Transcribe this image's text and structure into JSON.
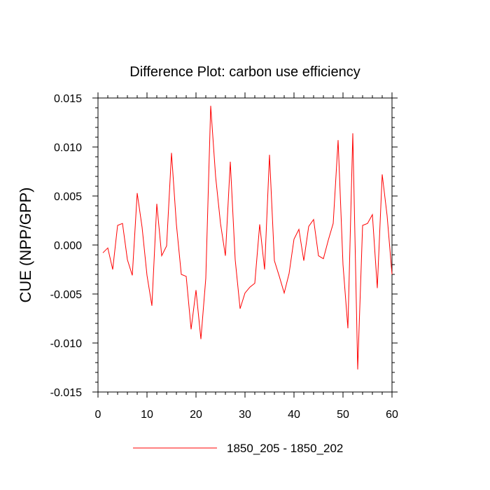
{
  "chart_data": {
    "type": "line",
    "title": "Difference Plot: carbon use efficiency",
    "xlabel": "",
    "ylabel": "CUE  (NPP/GPP)",
    "xlim": [
      0,
      60
    ],
    "ylim": [
      -0.015,
      0.015
    ],
    "x_ticks": [
      0,
      10,
      20,
      30,
      40,
      50,
      60
    ],
    "y_ticks": [
      -0.015,
      -0.01,
      -0.005,
      0.0,
      0.005,
      0.01,
      0.015
    ],
    "x_tick_labels": [
      "0",
      "10",
      "20",
      "30",
      "40",
      "50",
      "60"
    ],
    "y_tick_labels": [
      "-0.015",
      "-0.010",
      "-0.005",
      "0.000",
      "0.005",
      "0.010",
      "0.015"
    ],
    "grid": false,
    "legend_position": "bottom-center",
    "series": [
      {
        "name": "1850_205 - 1850_202",
        "color": "#ff0000",
        "x": [
          1,
          2,
          3,
          4,
          5,
          6,
          7,
          8,
          9,
          10,
          11,
          12,
          13,
          14,
          15,
          16,
          17,
          18,
          19,
          20,
          21,
          22,
          23,
          24,
          25,
          26,
          27,
          28,
          29,
          30,
          31,
          32,
          33,
          34,
          35,
          36,
          37,
          38,
          39,
          40,
          41,
          42,
          43,
          44,
          45,
          46,
          47,
          48,
          49,
          50,
          51,
          52,
          53,
          54,
          55,
          56,
          57,
          58,
          59,
          60
        ],
        "values": [
          -0.0008,
          -0.0003,
          -0.0025,
          0.002,
          0.0022,
          -0.0015,
          -0.0031,
          0.0053,
          0.0018,
          -0.0031,
          -0.0062,
          0.0042,
          -0.0011,
          -0.0001,
          0.0094,
          0.0021,
          -0.003,
          -0.0032,
          -0.0086,
          -0.0046,
          -0.0096,
          -0.0034,
          0.0142,
          0.007,
          0.0022,
          -0.0011,
          0.0085,
          -0.0015,
          -0.0065,
          -0.0049,
          -0.0043,
          -0.0039,
          0.0021,
          -0.0025,
          0.0092,
          -0.0016,
          -0.0032,
          -0.0049,
          -0.0029,
          0.0006,
          0.0016,
          -0.0016,
          0.0019,
          0.0026,
          -0.0011,
          -0.0014,
          0.0005,
          0.0022,
          0.0107,
          -0.002,
          -0.0085,
          0.0114,
          -0.0127,
          0.002,
          0.0022,
          0.0031,
          -0.0044,
          0.0072,
          0.003,
          -0.003
        ]
      }
    ]
  }
}
